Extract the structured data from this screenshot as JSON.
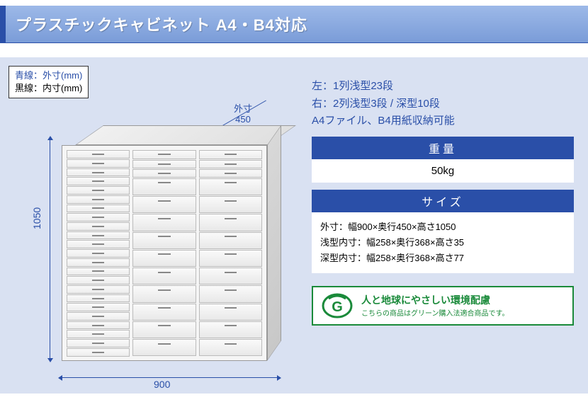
{
  "title": "プラスチックキャビネット A4・B4対応",
  "legend": {
    "blue": "青線：外寸(mm)",
    "black": "黒線：内寸(mm)"
  },
  "dimensions": {
    "height": "1050",
    "width": "900",
    "depth_label": "外寸",
    "depth": "450"
  },
  "cabinet": {
    "left_column_shallow": 23,
    "right_column_shallow": 3,
    "right_column_deep": 10
  },
  "specs": {
    "line1": "左：1列浅型23段",
    "line2": "右：2列浅型3段 / 深型10段",
    "line3": "A4ファイル、B4用紙収納可能"
  },
  "weight": {
    "header": "重量",
    "value": "50kg"
  },
  "size": {
    "header": "サイズ",
    "outer": "外寸：幅900×奥行450×高さ1050",
    "shallow": "浅型内寸：幅258×奥行368×高さ35",
    "deep": "深型内寸：幅258×奥行368×高さ77"
  },
  "eco": {
    "title": "人と地球にやさしい環境配慮",
    "sub": "こちらの商品はグリーン購入法適合商品です。"
  },
  "colors": {
    "primary": "#2a4fa8",
    "bg": "#d9e1f2",
    "green": "#1a8a3a"
  }
}
